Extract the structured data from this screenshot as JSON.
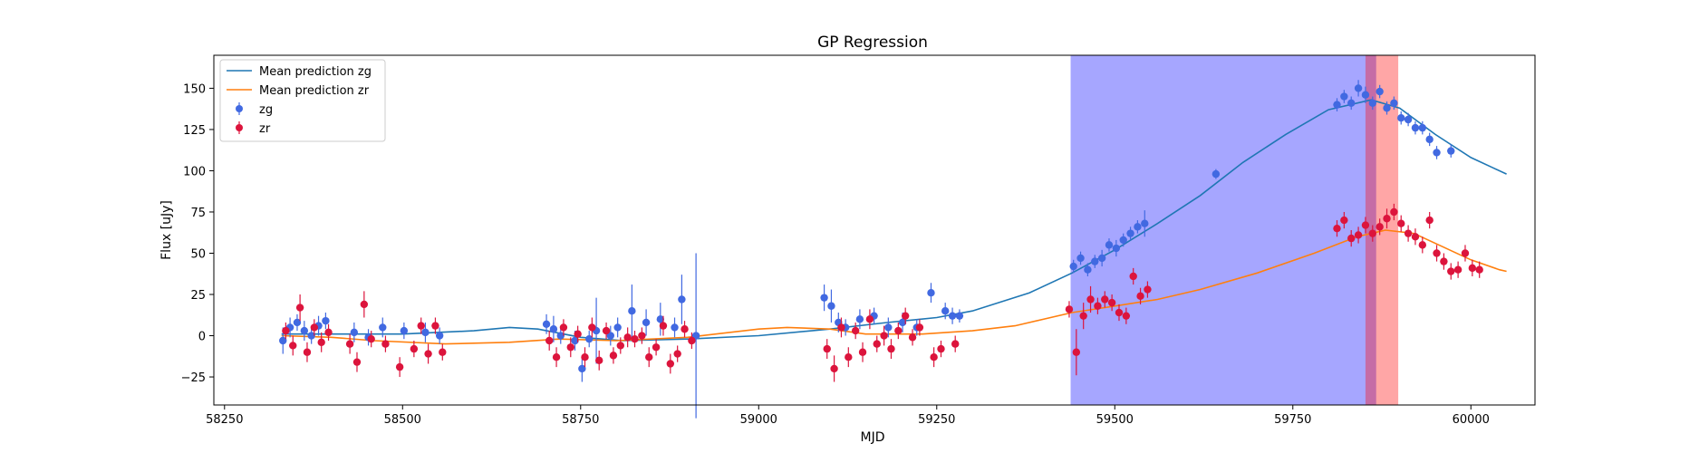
{
  "chart_data": {
    "type": "scatter",
    "title": "GP Regression",
    "xlabel": "MJD",
    "ylabel": "Flux [uJy]",
    "xlim": [
      58235,
      60090
    ],
    "ylim": [
      -42,
      170
    ],
    "xticks": [
      58250,
      58500,
      58750,
      59000,
      59250,
      59500,
      59750,
      60000
    ],
    "yticks": [
      -25,
      0,
      25,
      50,
      75,
      100,
      125,
      150
    ],
    "grid": false,
    "legend_position": "top-left",
    "shaded_regions": [
      {
        "x": [
          59438,
          59867
        ],
        "color": "#0000ff",
        "opacity": 0.35
      },
      {
        "x": [
          59852,
          59898
        ],
        "color": "#ff0000",
        "opacity": 0.35
      }
    ],
    "series": [
      {
        "name": "Mean prediction zg",
        "kind": "line",
        "color": "#1f77b4",
        "points": [
          [
            58330,
            1
          ],
          [
            58400,
            1
          ],
          [
            58500,
            1
          ],
          [
            58600,
            3
          ],
          [
            58650,
            5
          ],
          [
            58690,
            4
          ],
          [
            58750,
            -1
          ],
          [
            58810,
            -3
          ],
          [
            58900,
            -2
          ],
          [
            59000,
            0
          ],
          [
            59100,
            4
          ],
          [
            59180,
            8
          ],
          [
            59250,
            11
          ],
          [
            59300,
            15
          ],
          [
            59380,
            26
          ],
          [
            59440,
            38
          ],
          [
            59500,
            52
          ],
          [
            59560,
            68
          ],
          [
            59620,
            85
          ],
          [
            59680,
            105
          ],
          [
            59740,
            122
          ],
          [
            59800,
            137
          ],
          [
            59860,
            143
          ],
          [
            59900,
            138
          ],
          [
            59950,
            122
          ],
          [
            60000,
            108
          ],
          [
            60030,
            102
          ],
          [
            60050,
            98
          ]
        ]
      },
      {
        "name": "Mean prediction zr",
        "kind": "line",
        "color": "#ff7f0e",
        "points": [
          [
            58330,
            0
          ],
          [
            58400,
            -1
          ],
          [
            58460,
            -3
          ],
          [
            58560,
            -5
          ],
          [
            58650,
            -4
          ],
          [
            58720,
            -2
          ],
          [
            58800,
            -3
          ],
          [
            58900,
            -1
          ],
          [
            59000,
            4
          ],
          [
            59040,
            5
          ],
          [
            59100,
            4
          ],
          [
            59150,
            1
          ],
          [
            59230,
            1
          ],
          [
            59300,
            3
          ],
          [
            59360,
            6
          ],
          [
            59440,
            14
          ],
          [
            59500,
            18
          ],
          [
            59560,
            22
          ],
          [
            59620,
            28
          ],
          [
            59700,
            38
          ],
          [
            59780,
            50
          ],
          [
            59840,
            60
          ],
          [
            59880,
            64
          ],
          [
            59920,
            62
          ],
          [
            59960,
            54
          ],
          [
            60000,
            46
          ],
          [
            60040,
            40
          ],
          [
            60050,
            39
          ]
        ]
      },
      {
        "name": "zg",
        "kind": "errorbar",
        "color": "#4169e1",
        "points": [
          [
            58332,
            -3,
            8
          ],
          [
            58342,
            5,
            6
          ],
          [
            58352,
            8,
            5
          ],
          [
            58362,
            3,
            6
          ],
          [
            58372,
            0,
            5
          ],
          [
            58382,
            6,
            6
          ],
          [
            58392,
            9,
            5
          ],
          [
            58432,
            2,
            6
          ],
          [
            58452,
            -1,
            5
          ],
          [
            58472,
            5,
            6
          ],
          [
            58502,
            3,
            5
          ],
          [
            58532,
            2,
            6
          ],
          [
            58552,
            0,
            5
          ],
          [
            58702,
            7,
            6
          ],
          [
            58712,
            4,
            8
          ],
          [
            58722,
            0,
            5
          ],
          [
            58742,
            -3,
            6
          ],
          [
            58752,
            -20,
            8
          ],
          [
            58762,
            -2,
            5
          ],
          [
            58772,
            3,
            20
          ],
          [
            58792,
            0,
            6
          ],
          [
            58802,
            5,
            6
          ],
          [
            58822,
            15,
            16
          ],
          [
            58842,
            8,
            8
          ],
          [
            58862,
            10,
            10
          ],
          [
            58882,
            5,
            6
          ],
          [
            58892,
            22,
            15
          ],
          [
            58912,
            0,
            50
          ],
          [
            59092,
            23,
            8
          ],
          [
            59102,
            18,
            10
          ],
          [
            59112,
            8,
            6
          ],
          [
            59122,
            5,
            5
          ],
          [
            59142,
            10,
            6
          ],
          [
            59162,
            12,
            5
          ],
          [
            59182,
            5,
            6
          ],
          [
            59202,
            8,
            6
          ],
          [
            59222,
            5,
            5
          ],
          [
            59242,
            26,
            6
          ],
          [
            59262,
            15,
            5
          ],
          [
            59272,
            12,
            5
          ],
          [
            59282,
            12,
            4
          ],
          [
            59442,
            42,
            4
          ],
          [
            59452,
            47,
            4
          ],
          [
            59462,
            40,
            4
          ],
          [
            59472,
            45,
            4
          ],
          [
            59482,
            47,
            5
          ],
          [
            59492,
            55,
            4
          ],
          [
            59502,
            53,
            5
          ],
          [
            59512,
            58,
            4
          ],
          [
            59522,
            62,
            4
          ],
          [
            59532,
            66,
            4
          ],
          [
            59542,
            68,
            8
          ],
          [
            59642,
            98,
            3
          ],
          [
            59812,
            140,
            4
          ],
          [
            59822,
            145,
            4
          ],
          [
            59832,
            141,
            4
          ],
          [
            59842,
            150,
            5
          ],
          [
            59852,
            146,
            5
          ],
          [
            59862,
            141,
            4
          ],
          [
            59872,
            148,
            4
          ],
          [
            59882,
            138,
            4
          ],
          [
            59892,
            141,
            4
          ],
          [
            59902,
            132,
            4
          ],
          [
            59912,
            131,
            4
          ],
          [
            59922,
            126,
            4
          ],
          [
            59932,
            126,
            4
          ],
          [
            59942,
            119,
            4
          ],
          [
            59952,
            111,
            4
          ],
          [
            59972,
            112,
            4
          ]
        ]
      },
      {
        "name": "zr",
        "kind": "errorbar",
        "color": "#dc143c",
        "points": [
          [
            58336,
            3,
            5
          ],
          [
            58346,
            -6,
            6
          ],
          [
            58356,
            17,
            8
          ],
          [
            58366,
            -10,
            6
          ],
          [
            58376,
            5,
            5
          ],
          [
            58386,
            -4,
            6
          ],
          [
            58396,
            2,
            5
          ],
          [
            58426,
            -5,
            6
          ],
          [
            58436,
            -16,
            6
          ],
          [
            58446,
            19,
            8
          ],
          [
            58456,
            -2,
            5
          ],
          [
            58476,
            -5,
            5
          ],
          [
            58496,
            -19,
            6
          ],
          [
            58516,
            -8,
            5
          ],
          [
            58526,
            6,
            5
          ],
          [
            58536,
            -11,
            6
          ],
          [
            58546,
            6,
            5
          ],
          [
            58556,
            -10,
            5
          ],
          [
            58706,
            -3,
            6
          ],
          [
            58716,
            -13,
            6
          ],
          [
            58726,
            5,
            5
          ],
          [
            58736,
            -7,
            6
          ],
          [
            58746,
            1,
            5
          ],
          [
            58756,
            -13,
            6
          ],
          [
            58766,
            5,
            6
          ],
          [
            58776,
            -15,
            6
          ],
          [
            58786,
            3,
            5
          ],
          [
            58796,
            -12,
            5
          ],
          [
            58806,
            -6,
            5
          ],
          [
            58816,
            -1,
            6
          ],
          [
            58826,
            -2,
            5
          ],
          [
            58836,
            0,
            5
          ],
          [
            58846,
            -13,
            6
          ],
          [
            58856,
            -7,
            5
          ],
          [
            58866,
            6,
            6
          ],
          [
            58876,
            -17,
            6
          ],
          [
            58886,
            -11,
            5
          ],
          [
            58896,
            4,
            5
          ],
          [
            58906,
            -3,
            5
          ],
          [
            59096,
            -8,
            6
          ],
          [
            59106,
            -20,
            8
          ],
          [
            59116,
            5,
            6
          ],
          [
            59126,
            -13,
            6
          ],
          [
            59136,
            3,
            5
          ],
          [
            59146,
            -10,
            6
          ],
          [
            59156,
            10,
            6
          ],
          [
            59166,
            -5,
            5
          ],
          [
            59176,
            0,
            6
          ],
          [
            59186,
            -8,
            6
          ],
          [
            59196,
            3,
            5
          ],
          [
            59206,
            12,
            5
          ],
          [
            59216,
            -1,
            5
          ],
          [
            59226,
            5,
            5
          ],
          [
            59246,
            -13,
            6
          ],
          [
            59256,
            -8,
            5
          ],
          [
            59276,
            -5,
            5
          ],
          [
            59436,
            16,
            5
          ],
          [
            59446,
            -10,
            14
          ],
          [
            59456,
            12,
            8
          ],
          [
            59466,
            22,
            8
          ],
          [
            59476,
            18,
            5
          ],
          [
            59486,
            22,
            5
          ],
          [
            59496,
            20,
            5
          ],
          [
            59506,
            14,
            5
          ],
          [
            59516,
            12,
            5
          ],
          [
            59526,
            36,
            5
          ],
          [
            59536,
            24,
            5
          ],
          [
            59546,
            28,
            5
          ],
          [
            59812,
            65,
            5
          ],
          [
            59822,
            70,
            5
          ],
          [
            59832,
            59,
            5
          ],
          [
            59842,
            61,
            5
          ],
          [
            59852,
            67,
            5
          ],
          [
            59862,
            62,
            5
          ],
          [
            59872,
            66,
            5
          ],
          [
            59882,
            71,
            6
          ],
          [
            59892,
            75,
            5
          ],
          [
            59902,
            68,
            5
          ],
          [
            59912,
            62,
            5
          ],
          [
            59922,
            60,
            5
          ],
          [
            59932,
            55,
            5
          ],
          [
            59942,
            70,
            5
          ],
          [
            59952,
            50,
            5
          ],
          [
            59962,
            45,
            5
          ],
          [
            59972,
            39,
            5
          ],
          [
            59982,
            40,
            5
          ],
          [
            59992,
            50,
            5
          ],
          [
            60002,
            41,
            5
          ],
          [
            60012,
            40,
            5
          ]
        ]
      }
    ]
  }
}
